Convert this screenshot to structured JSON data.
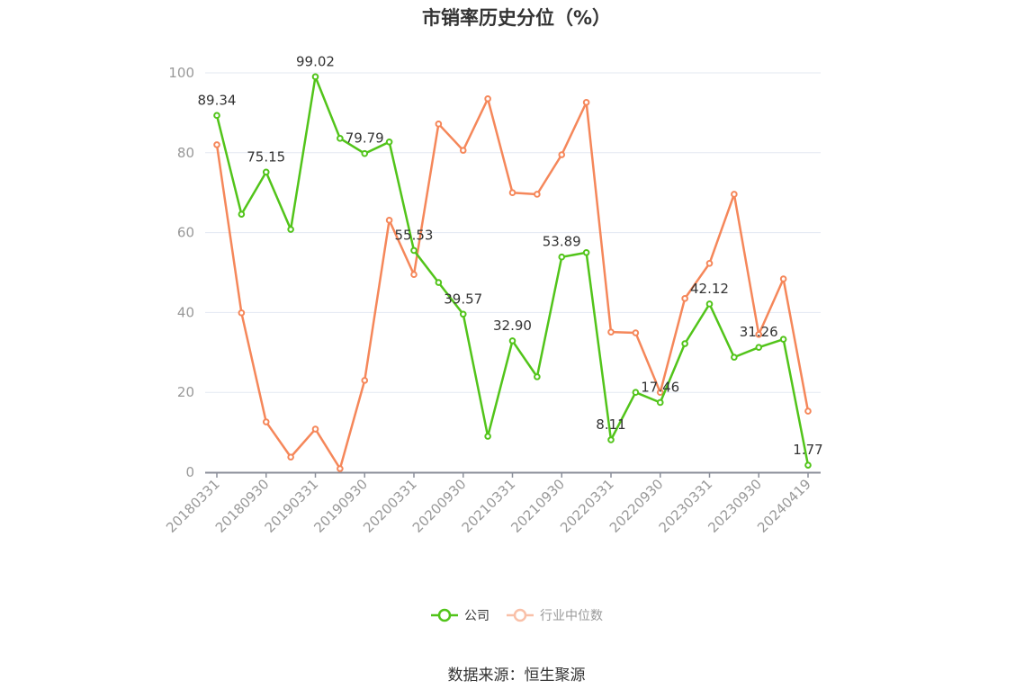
{
  "chart_data": {
    "type": "line",
    "title": "市销率历史分位（%）",
    "xlabel": "",
    "ylabel": "",
    "ylim": [
      0,
      100
    ],
    "yticks": [
      0,
      20,
      40,
      60,
      80,
      100
    ],
    "grid": true,
    "legend_position": "bottom",
    "x_tick_labels": [
      "20180331",
      "20180930",
      "20190331",
      "20190930",
      "20200331",
      "20200930",
      "20210331",
      "20210930",
      "20220331",
      "20220930",
      "20230331",
      "20230930",
      "20240419"
    ],
    "x": [
      "20180331",
      "20180630",
      "20180930",
      "20181231",
      "20190331",
      "20190630",
      "20190930",
      "20191231",
      "20200331",
      "20200630",
      "20200930",
      "20201231",
      "20210331",
      "20210630",
      "20210930",
      "20211231",
      "20220331",
      "20220630",
      "20220930",
      "20221231",
      "20230331",
      "20230630",
      "20230930",
      "20231231",
      "20240419"
    ],
    "series": [
      {
        "name": "公司",
        "color": "#52c41a",
        "values": [
          89.34,
          64.6,
          75.15,
          60.8,
          99.02,
          83.6,
          79.79,
          82.7,
          55.53,
          47.5,
          39.57,
          9.0,
          32.9,
          23.9,
          53.89,
          55.0,
          8.11,
          20.0,
          17.46,
          32.2,
          42.12,
          28.8,
          31.26,
          33.3,
          1.77
        ],
        "labeled_points": {
          "0": "89.34",
          "2": "75.15",
          "4": "99.02",
          "6": "79.79",
          "8": "55.53",
          "10": "39.57",
          "12": "32.90",
          "14": "53.89",
          "16": "8.11",
          "18": "17.46",
          "20": "42.12",
          "22": "31.26",
          "24": "1.77"
        }
      },
      {
        "name": "行业中位数",
        "color": "#f5875a",
        "values": [
          82.0,
          39.9,
          12.6,
          3.8,
          10.8,
          0.9,
          23.0,
          63.1,
          49.5,
          87.2,
          80.6,
          93.5,
          70.0,
          69.6,
          79.5,
          92.6,
          35.1,
          34.9,
          20.0,
          43.5,
          52.3,
          69.6,
          34.5,
          48.4,
          15.3
        ]
      }
    ]
  },
  "legend": {
    "company": "公司",
    "industry": "行业中位数"
  },
  "footer": {
    "source": "数据来源：恒生聚源"
  }
}
